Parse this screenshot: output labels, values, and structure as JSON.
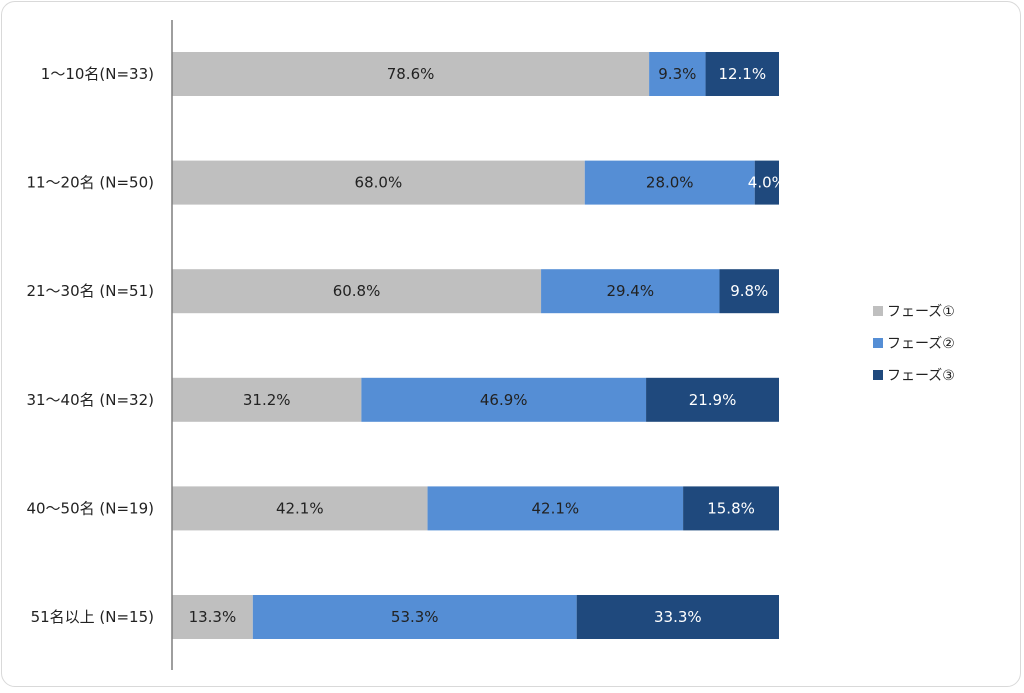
{
  "chart_data": {
    "type": "bar",
    "orientation": "horizontal",
    "stacked": "percent",
    "categories": [
      "1～10名(N=33)",
      "11～20名 (N=50)",
      "21～30名 (N=51)",
      "31～40名 (N=32)",
      "40～50名 (N=19)",
      "51名以上 (N=15)"
    ],
    "series": [
      {
        "name": "フェーズ①",
        "color": "#bfbfbf",
        "text_color": "#222222",
        "values": [
          78.6,
          68.0,
          60.8,
          31.2,
          42.1,
          13.3
        ],
        "labels": [
          "78.6%",
          "68.0%",
          "60.8%",
          "31.2%",
          "42.1%",
          "13.3%"
        ]
      },
      {
        "name": "フェーズ②",
        "color": "#558ed5",
        "text_color": "#222222",
        "values": [
          9.3,
          28.0,
          29.4,
          46.9,
          42.1,
          53.3
        ],
        "labels": [
          "9.3%",
          "28.0%",
          "29.4%",
          "46.9%",
          "42.1%",
          "53.3%"
        ]
      },
      {
        "name": "フェーズ③",
        "color": "#1f497d",
        "text_color": "#ffffff",
        "values": [
          12.1,
          4.0,
          9.8,
          21.9,
          15.8,
          33.3
        ],
        "labels": [
          "12.1%",
          "4.0%",
          "9.8%",
          "21.9%",
          "15.8%",
          "33.3%"
        ]
      }
    ],
    "xlim": [
      0,
      100
    ],
    "grid": false,
    "legend_position": "right"
  }
}
